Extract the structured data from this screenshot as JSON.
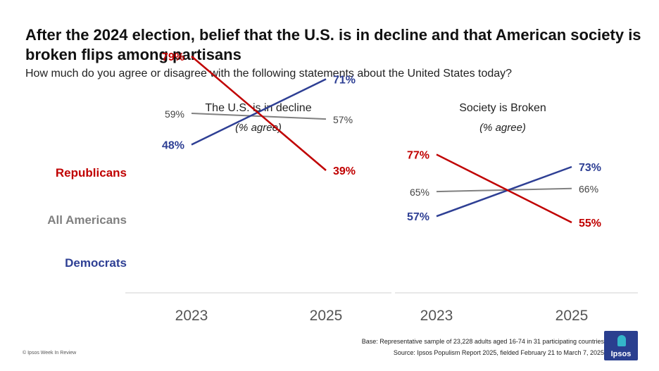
{
  "header": {
    "title": "After the 2024 election, belief that the U.S. is in decline and that American society is broken flips among partisans",
    "subtitle": "How much do you agree or disagree with the following statements about the United States today?"
  },
  "group_labels": [
    "Republicans",
    "All Americans",
    "Democrats"
  ],
  "colors": {
    "Republicans": "#c00000",
    "All Americans": "#808080",
    "Democrats": "#2e3f94"
  },
  "chart_data": [
    {
      "type": "line",
      "title": "The U.S. is in decline",
      "subtitle": "(% agree)",
      "x": [
        "2023",
        "2025"
      ],
      "series": [
        {
          "name": "Republicans",
          "values": [
            79,
            39
          ],
          "labels": [
            "79%",
            "39%"
          ]
        },
        {
          "name": "All Americans",
          "values": [
            59,
            57
          ],
          "labels": [
            "59%",
            "57%"
          ]
        },
        {
          "name": "Democrats",
          "values": [
            48,
            71
          ],
          "labels": [
            "48%",
            "71%"
          ]
        }
      ]
    },
    {
      "type": "line",
      "title": "Society is Broken",
      "subtitle": "(% agree)",
      "x": [
        "2023",
        "2025"
      ],
      "series": [
        {
          "name": "Republicans",
          "values": [
            77,
            55
          ],
          "labels": [
            "77%",
            "55%"
          ]
        },
        {
          "name": "All Americans",
          "values": [
            65,
            66
          ],
          "labels": [
            "65%",
            "66%"
          ]
        },
        {
          "name": "Democrats",
          "values": [
            57,
            73
          ],
          "labels": [
            "57%",
            "73%"
          ]
        }
      ]
    }
  ],
  "footer": {
    "base": "Base: Representative sample of 23,228 adults aged 16-74 in 31 participating countries",
    "source": "Source: Ipsos Populism Report 2025, fielded February 21 to March 7, 2025",
    "copyright": "© Ipsos Week In Review",
    "logo": "Ipsos"
  }
}
